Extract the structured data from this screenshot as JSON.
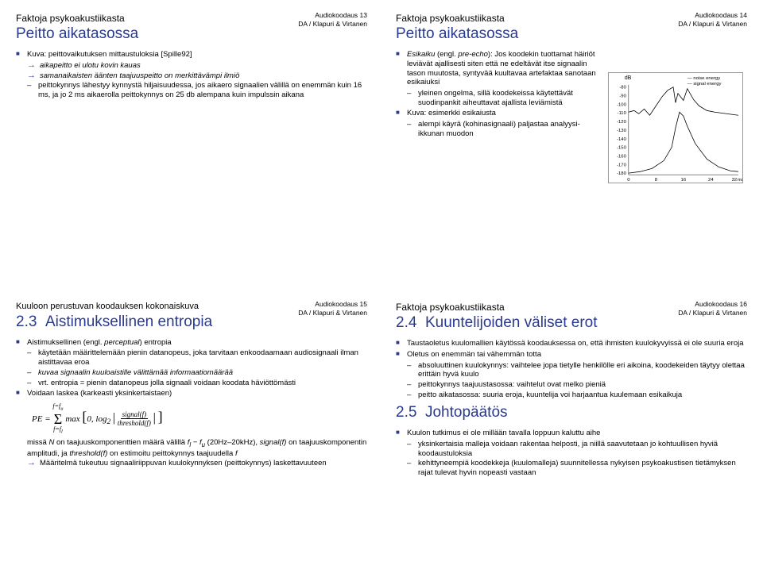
{
  "slides": [
    {
      "pagenum": "Audiokoodaus 13",
      "footer": "DA / Klapuri & Virtanen",
      "over": "Faktoja psykoakustiikasta",
      "title": "Peitto aikatasossa",
      "items": [
        {
          "t": "b1",
          "text": "Kuva: peittovaikutuksen mittaustuloksia [Spille92]"
        },
        {
          "t": "arrow",
          "text": "aikapeitto ei ulotu kovin kauas",
          "italic": true
        },
        {
          "t": "arrow",
          "text": "samanaikaisten äänten taajuuspeitto on merkittävämpi ilmiö",
          "italic": true
        },
        {
          "t": "dash",
          "text": "peittokynnys lähestyy kynnystä hiljaisuudessa, jos aikaero signaalien välillä on enemmän kuin 16 ms, ja jo 2 ms aikaerolla peittokynnys on 25 db alempana kuin impulssin aikana"
        }
      ]
    },
    {
      "pagenum": "Audiokoodaus 14",
      "footer": "DA / Klapuri & Virtanen",
      "over": "Faktoja psykoakustiikasta",
      "title": "Peitto aikatasossa",
      "col1": [
        {
          "t": "b1",
          "html": "<span class=\"italic\">Esikaiku</span> (engl. <span class=\"italic\">pre-echo</span>): Jos koodekin tuottamat häiriöt leviävät ajallisesti siten että ne edeltävät itse signaalin tason muutosta, syntyvää kuultavaa artefaktaa sanotaan esikaiuksi"
        },
        {
          "t": "dash",
          "text": "yleinen ongelma, sillä koodekeissa käytettävät suodinpankit aiheuttavat ajallista leviämistä"
        },
        {
          "t": "b1",
          "text": "Kuva: esimerkki esikaiusta"
        },
        {
          "t": "dash",
          "text": "alempi käyrä (kohinasignaali) paljastaa analyysi-ikkunan muodon"
        }
      ],
      "chart": {
        "ylabel": "dB",
        "yticks": [
          "-80",
          "-90",
          "-100",
          "-110",
          "-120",
          "-130",
          "-140",
          "-150",
          "-160",
          "-170",
          "-180"
        ],
        "xticks": [
          "0",
          "8",
          "16",
          "24",
          "32"
        ],
        "xlabel": "ms",
        "legend": [
          "noise energy",
          "signal energy"
        ]
      }
    },
    {
      "pagenum": "Audiokoodaus 15",
      "footer": "DA / Klapuri & Virtanen",
      "over": "Kuuloon perustuvan koodauksen kokonaiskuva",
      "secnum": "2.3",
      "sectitle": "Aistimuksellinen entropia",
      "items": [
        {
          "t": "b1",
          "html": "Aistimuksellinen (engl. <span class=\"italic\">perceptual</span>) entropia"
        },
        {
          "t": "dash",
          "text": "käytetään määrittelemään pienin datanopeus, joka tarvitaan enkoodaamaan audiosignaali ilman aistittavaa eroa"
        },
        {
          "t": "dash",
          "text": "kuvaa signaalin kuuloaistille välittämää informaatiomäärää",
          "italic": true
        },
        {
          "t": "dash",
          "text": "vrt. entropia = pienin datanopeus jolla signaali voidaan koodata häviöttömästi"
        },
        {
          "t": "b1",
          "text": "Voidaan laskea (karkeasti yksinkertaistaen)"
        }
      ],
      "formula": "PE = Σ max[0, log₂ |signal(f)/threshold(f)|]",
      "formula_sub": "f=f_l … f=f_u",
      "items2": [
        {
          "t": "plain",
          "html": "missä <span class=\"italic\">N</span> on taajuuskomponenttien määrä välillä <span class=\"italic\">f<sub>l</sub> − f<sub>u</sub></span> (20Hz–20kHz), <span class=\"italic\">signal(f)</span> on taajuuskomponentin amplitudi, ja <span class=\"italic\">threshold(f)</span> on estimoitu peittokynnys taajuudella <span class=\"italic\">f</span>"
        },
        {
          "t": "arrow",
          "text": "Määritelmä tukeutuu signaaliriippuvan kuulokynnyksen (peittokynnys) laskettavuuteen"
        }
      ]
    },
    {
      "pagenum": "Audiokoodaus 16",
      "footer": "DA / Klapuri & Virtanen",
      "over": "Faktoja psykoakustiikasta",
      "secnum": "2.4",
      "sectitle": "Kuuntelijoiden väliset erot",
      "items": [
        {
          "t": "b1",
          "text": "Taustaoletus kuulomallien käytössä koodauksessa on, että ihmisten kuulokyvyissä ei ole suuria eroja"
        },
        {
          "t": "b1",
          "text": "Oletus on enemmän tai vähemmän totta"
        },
        {
          "t": "dash",
          "text": "absoluuttinen kuulokynnys: vaihtelee jopa tietylle henkilölle eri aikoina, koodekeiden täytyy olettaa erittäin hyvä kuulo"
        },
        {
          "t": "dash",
          "text": "peittokynnys taajuustasossa: vaihtelut ovat melko pieniä"
        },
        {
          "t": "dash",
          "text": "peitto aikatasossa: suuria eroja, kuuntelija voi harjaantua kuulemaan esikaikuja"
        }
      ],
      "secnum2": "2.5",
      "sectitle2": "Johtopäätös",
      "items2": [
        {
          "t": "b1",
          "text": "Kuulon tutkimus ei ole millään tavalla loppuun kaluttu aihe"
        },
        {
          "t": "dash",
          "text": "yksinkertaisia malleja voidaan rakentaa helposti, ja niillä saavutetaan jo kohtuullisen hyviä koodaustuloksia"
        },
        {
          "t": "dash",
          "text": "kehittyneempiä koodekkeja (kuulomalleja) suunnitellessa nykyisen psykoakustisen tietämyksen rajat tulevat hyvin nopeasti vastaan"
        }
      ]
    }
  ]
}
